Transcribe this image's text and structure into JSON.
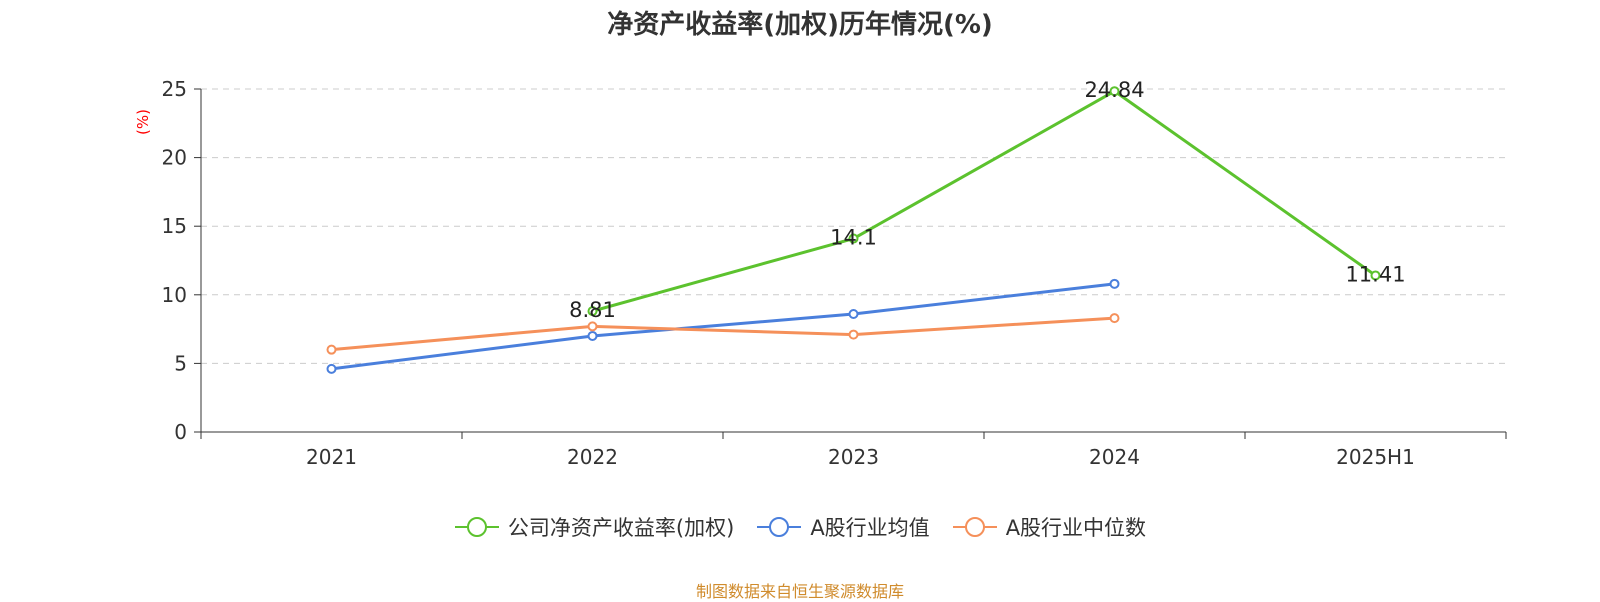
{
  "chart_data": {
    "type": "line",
    "title": "净资产收益率(加权)历年情况(%)",
    "ylabel": "(%)",
    "categories": [
      "2021",
      "2022",
      "2023",
      "2024",
      "2025H1"
    ],
    "ylim": [
      0,
      25
    ],
    "yticks": [
      0,
      5,
      10,
      15,
      20,
      25
    ],
    "grid": true,
    "legend_position": "bottom",
    "series": [
      {
        "name": "公司净资产收益率(加权)",
        "color": "#5cc22e",
        "values": [
          null,
          8.81,
          14.1,
          24.84,
          11.41
        ],
        "labels": [
          "",
          "8.81",
          "14.1",
          "24.84",
          "11.41"
        ]
      },
      {
        "name": "A股行业均值",
        "color": "#4a7fdc",
        "values": [
          4.6,
          7.0,
          8.6,
          10.8,
          null
        ]
      },
      {
        "name": "A股行业中位数",
        "color": "#f5905a",
        "values": [
          6.0,
          7.7,
          7.1,
          8.3,
          null
        ]
      }
    ]
  },
  "source_text": "制图数据来自恒生聚源数据库"
}
